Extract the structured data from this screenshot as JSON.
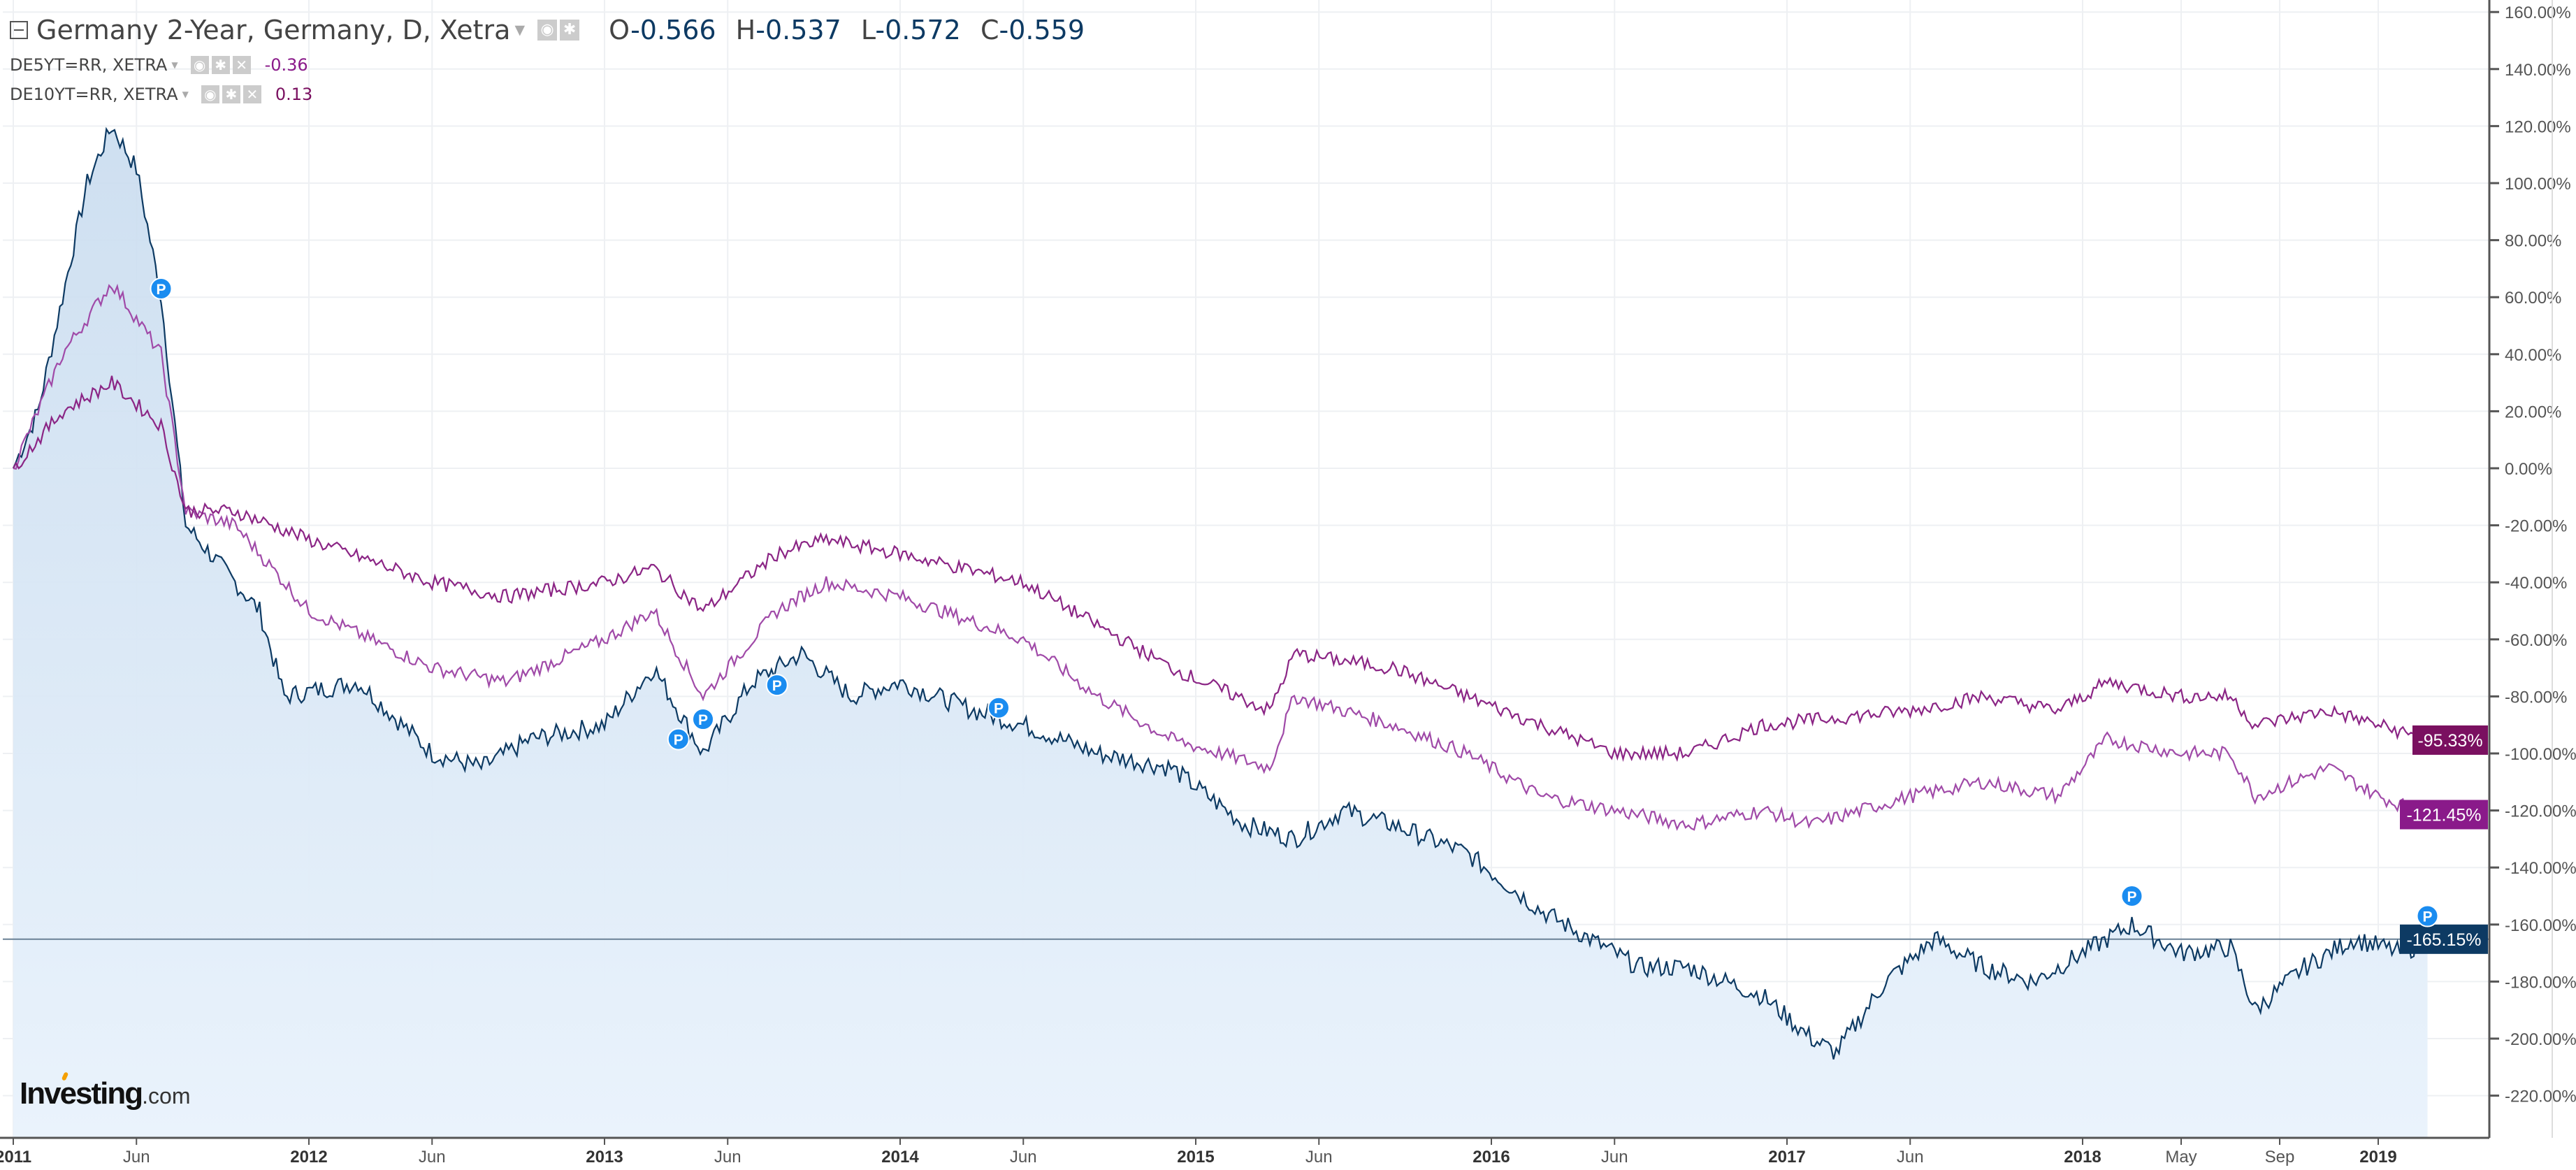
{
  "header": {
    "title": "Germany 2-Year, Germany, D, Xetra",
    "ohlc": [
      {
        "key": "O",
        "value": "-0.566"
      },
      {
        "key": "H",
        "value": "-0.537"
      },
      {
        "key": "L",
        "value": "-0.572"
      },
      {
        "key": "C",
        "value": "-0.559"
      }
    ],
    "comparisons": [
      {
        "label": "DE5YT=RR, XETRA",
        "value": "-0.36",
        "color": "#8a1a8a"
      },
      {
        "label": "DE10YT=RR, XETRA",
        "value": "0.13",
        "color": "#7a1060"
      }
    ]
  },
  "logo": {
    "brand": "Investing",
    "suffix": ".com"
  },
  "chart_data": {
    "type": "line",
    "yunit": "%",
    "ylim": [
      -230,
      165
    ],
    "yticks": [
      "160.00%",
      "140.00%",
      "120.00%",
      "100.00%",
      "80.00%",
      "60.00%",
      "40.00%",
      "20.00%",
      "0.00%",
      "-20.00%",
      "-40.00%",
      "-60.00%",
      "-80.00%",
      "-100.00%",
      "-120.00%",
      "-140.00%",
      "-160.00%",
      "-180.00%",
      "-200.00%",
      "-220.00%"
    ],
    "xticks": [
      {
        "date": "2011-01",
        "label": "2011",
        "major": true
      },
      {
        "date": "2011-06",
        "label": "Jun",
        "major": false
      },
      {
        "date": "2012-01",
        "label": "2012",
        "major": true
      },
      {
        "date": "2012-06",
        "label": "Jun",
        "major": false
      },
      {
        "date": "2013-01",
        "label": "2013",
        "major": true
      },
      {
        "date": "2013-06",
        "label": "Jun",
        "major": false
      },
      {
        "date": "2014-01",
        "label": "2014",
        "major": true
      },
      {
        "date": "2014-06",
        "label": "Jun",
        "major": false
      },
      {
        "date": "2015-01",
        "label": "2015",
        "major": true
      },
      {
        "date": "2015-06",
        "label": "Jun",
        "major": false
      },
      {
        "date": "2016-01",
        "label": "2016",
        "major": true
      },
      {
        "date": "2016-06",
        "label": "Jun",
        "major": false
      },
      {
        "date": "2017-01",
        "label": "2017",
        "major": true
      },
      {
        "date": "2017-06",
        "label": "Jun",
        "major": false
      },
      {
        "date": "2018-01",
        "label": "2018",
        "major": true
      },
      {
        "date": "2018-05",
        "label": "May",
        "major": false
      },
      {
        "date": "2018-09",
        "label": "Sep",
        "major": false
      },
      {
        "date": "2019-01",
        "label": "2019",
        "major": true
      }
    ],
    "grid": true,
    "series": [
      {
        "name": "Germany 2-Year",
        "color": "#0d3a63",
        "area": true,
        "last_label": "-165.15%",
        "points": [
          [
            "2011-01",
            0
          ],
          [
            "2011-02",
            20
          ],
          [
            "2011-03",
            60
          ],
          [
            "2011-04",
            100
          ],
          [
            "2011-05",
            120
          ],
          [
            "2011-06",
            105
          ],
          [
            "2011-07",
            60
          ],
          [
            "2011-08",
            -20
          ],
          [
            "2011-09",
            -30
          ],
          [
            "2011-10",
            -40
          ],
          [
            "2011-11",
            -50
          ],
          [
            "2011-12",
            -80
          ],
          [
            "2012-03",
            -75
          ],
          [
            "2012-06",
            -100
          ],
          [
            "2012-08",
            -105
          ],
          [
            "2012-10",
            -95
          ],
          [
            "2013-01",
            -90
          ],
          [
            "2013-03",
            -70
          ],
          [
            "2013-05",
            -100
          ],
          [
            "2013-07",
            -75
          ],
          [
            "2013-09",
            -65
          ],
          [
            "2013-11",
            -80
          ],
          [
            "2014-01",
            -75
          ],
          [
            "2014-04",
            -85
          ],
          [
            "2014-06",
            -90
          ],
          [
            "2014-09",
            -100
          ],
          [
            "2014-12",
            -105
          ],
          [
            "2015-03",
            -125
          ],
          [
            "2015-05",
            -130
          ],
          [
            "2015-07",
            -120
          ],
          [
            "2015-09",
            -125
          ],
          [
            "2015-12",
            -135
          ],
          [
            "2016-03",
            -155
          ],
          [
            "2016-05",
            -165
          ],
          [
            "2016-07",
            -175
          ],
          [
            "2016-09",
            -175
          ],
          [
            "2016-12",
            -185
          ],
          [
            "2017-02",
            -200
          ],
          [
            "2017-03",
            -205
          ],
          [
            "2017-05",
            -180
          ],
          [
            "2017-07",
            -165
          ],
          [
            "2017-09",
            -175
          ],
          [
            "2017-11",
            -180
          ],
          [
            "2018-01",
            -170
          ],
          [
            "2018-03",
            -160
          ],
          [
            "2018-05",
            -170
          ],
          [
            "2018-07",
            -168
          ],
          [
            "2018-08",
            -190
          ],
          [
            "2018-10",
            -175
          ],
          [
            "2018-12",
            -165
          ],
          [
            "2019-02",
            -170
          ],
          [
            "2019-03",
            -165.15
          ]
        ]
      },
      {
        "name": "DE5YT=RR, XETRA",
        "color": "#a04aa8",
        "label_color": "#8a1a8a",
        "last_label": "-121.45%",
        "points": [
          [
            "2011-01",
            0
          ],
          [
            "2011-03",
            40
          ],
          [
            "2011-05",
            65
          ],
          [
            "2011-07",
            40
          ],
          [
            "2011-08",
            -15
          ],
          [
            "2011-10",
            -20
          ],
          [
            "2012-01",
            -50
          ],
          [
            "2012-06",
            -70
          ],
          [
            "2012-09",
            -75
          ],
          [
            "2013-01",
            -60
          ],
          [
            "2013-03",
            -50
          ],
          [
            "2013-05",
            -80
          ],
          [
            "2013-08",
            -50
          ],
          [
            "2013-10",
            -40
          ],
          [
            "2014-01",
            -45
          ],
          [
            "2014-06",
            -60
          ],
          [
            "2014-09",
            -80
          ],
          [
            "2014-12",
            -95
          ],
          [
            "2015-04",
            -105
          ],
          [
            "2015-05",
            -80
          ],
          [
            "2015-09",
            -90
          ],
          [
            "2015-12",
            -100
          ],
          [
            "2016-03",
            -115
          ],
          [
            "2016-06",
            -120
          ],
          [
            "2016-09",
            -125
          ],
          [
            "2016-12",
            -120
          ],
          [
            "2017-02",
            -125
          ],
          [
            "2017-06",
            -115
          ],
          [
            "2017-09",
            -110
          ],
          [
            "2017-12",
            -115
          ],
          [
            "2018-02",
            -95
          ],
          [
            "2018-05",
            -100
          ],
          [
            "2018-07",
            -100
          ],
          [
            "2018-08",
            -115
          ],
          [
            "2018-11",
            -105
          ],
          [
            "2019-01",
            -115
          ],
          [
            "2019-03",
            -121.45
          ]
        ]
      },
      {
        "name": "DE10YT=RR, XETRA",
        "color": "#8b2585",
        "label_color": "#7a1060",
        "last_label": "-95.33%",
        "points": [
          [
            "2011-01",
            0
          ],
          [
            "2011-03",
            20
          ],
          [
            "2011-05",
            30
          ],
          [
            "2011-07",
            15
          ],
          [
            "2011-08",
            -15
          ],
          [
            "2011-10",
            -15
          ],
          [
            "2012-01",
            -25
          ],
          [
            "2012-06",
            -40
          ],
          [
            "2012-09",
            -45
          ],
          [
            "2013-01",
            -40
          ],
          [
            "2013-03",
            -35
          ],
          [
            "2013-05",
            -50
          ],
          [
            "2013-08",
            -30
          ],
          [
            "2013-10",
            -25
          ],
          [
            "2014-01",
            -30
          ],
          [
            "2014-06",
            -40
          ],
          [
            "2014-09",
            -55
          ],
          [
            "2014-12",
            -70
          ],
          [
            "2015-04",
            -85
          ],
          [
            "2015-05",
            -65
          ],
          [
            "2015-09",
            -70
          ],
          [
            "2015-12",
            -80
          ],
          [
            "2016-03",
            -90
          ],
          [
            "2016-06",
            -100
          ],
          [
            "2016-09",
            -100
          ],
          [
            "2016-12",
            -90
          ],
          [
            "2017-06",
            -85
          ],
          [
            "2017-09",
            -80
          ],
          [
            "2017-12",
            -85
          ],
          [
            "2018-02",
            -75
          ],
          [
            "2018-05",
            -80
          ],
          [
            "2018-07",
            -80
          ],
          [
            "2018-08",
            -90
          ],
          [
            "2018-11",
            -85
          ],
          [
            "2019-01",
            -90
          ],
          [
            "2019-03",
            -95.33
          ]
        ]
      }
    ],
    "markers": [
      {
        "label": "P",
        "date": "2011-07",
        "value": 63
      },
      {
        "label": "P",
        "date": "2013-04",
        "value": -95
      },
      {
        "label": "P",
        "date": "2013-05",
        "value": -88
      },
      {
        "label": "P",
        "date": "2013-08",
        "value": -76
      },
      {
        "label": "P",
        "date": "2014-05",
        "value": -84
      },
      {
        "label": "P",
        "date": "2018-03",
        "value": -150
      },
      {
        "label": "P",
        "date": "2019-03",
        "value": -157
      }
    ],
    "marker_color": "#1a8cf0",
    "hline_value": -165.15
  }
}
